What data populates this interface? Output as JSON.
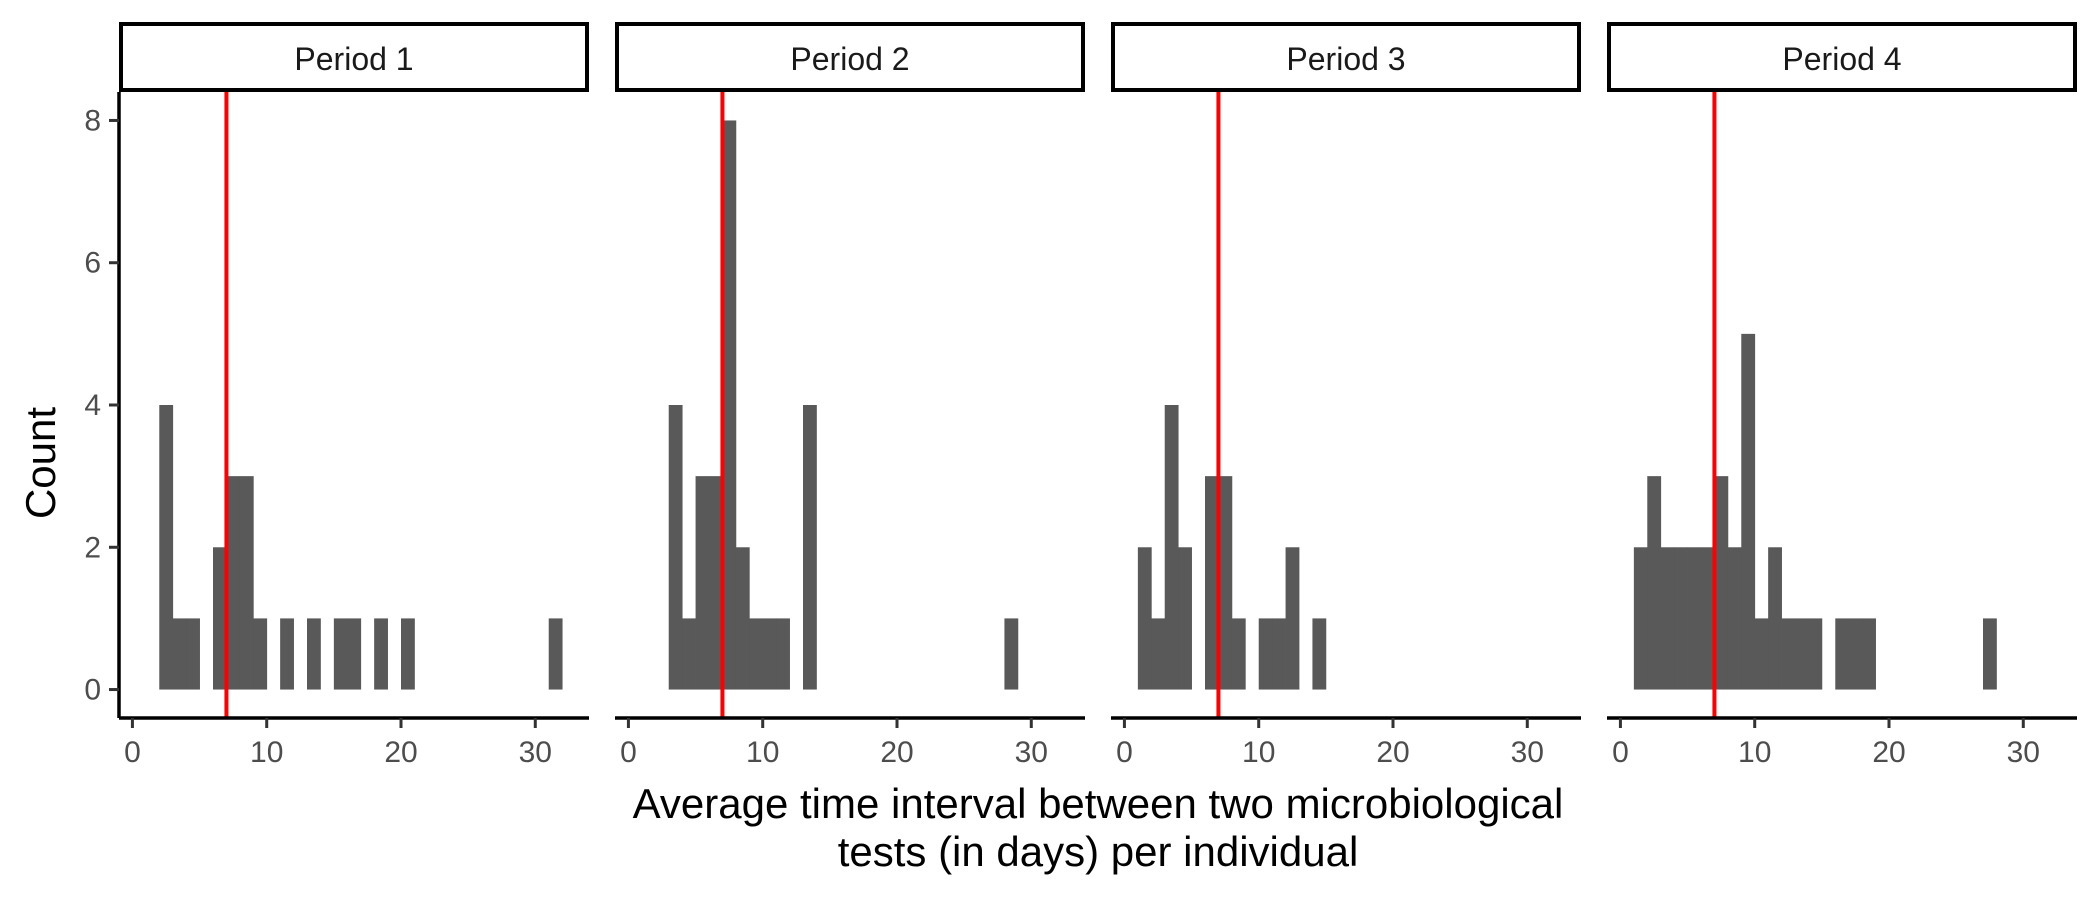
{
  "chart_data": {
    "type": "bar",
    "subtype": "faceted-histogram",
    "xlabel_lines": [
      "Average time interval between two microbiological",
      "tests (in days) per individual"
    ],
    "ylabel": "Count",
    "xlim": [
      -1,
      34
    ],
    "ylim": [
      -0.4,
      8.4
    ],
    "xticks": [
      0,
      10,
      20,
      30
    ],
    "yticks": [
      0,
      2,
      4,
      6,
      8
    ],
    "bin_width": 1,
    "grid": false,
    "colors": {
      "bar": "#595959",
      "reference_line": "#ff0000"
    },
    "reference_line": {
      "x": 7
    },
    "facets": [
      {
        "label": "Period 1",
        "bins": [
          {
            "start": 2,
            "count": 4
          },
          {
            "start": 3,
            "count": 1
          },
          {
            "start": 4,
            "count": 1
          },
          {
            "start": 6,
            "count": 2
          },
          {
            "start": 7,
            "count": 3
          },
          {
            "start": 8,
            "count": 3
          },
          {
            "start": 9,
            "count": 1
          },
          {
            "start": 11,
            "count": 1
          },
          {
            "start": 13,
            "count": 1
          },
          {
            "start": 15,
            "count": 1
          },
          {
            "start": 16,
            "count": 1
          },
          {
            "start": 18,
            "count": 1
          },
          {
            "start": 20,
            "count": 1
          },
          {
            "start": 31,
            "count": 1
          }
        ]
      },
      {
        "label": "Period 2",
        "bins": [
          {
            "start": 3,
            "count": 4
          },
          {
            "start": 4,
            "count": 1
          },
          {
            "start": 5,
            "count": 3
          },
          {
            "start": 6,
            "count": 3
          },
          {
            "start": 7,
            "count": 8
          },
          {
            "start": 8,
            "count": 2
          },
          {
            "start": 9,
            "count": 1
          },
          {
            "start": 10,
            "count": 1
          },
          {
            "start": 11,
            "count": 1
          },
          {
            "start": 13,
            "count": 4
          },
          {
            "start": 28,
            "count": 1
          }
        ]
      },
      {
        "label": "Period 3",
        "bins": [
          {
            "start": 1,
            "count": 2
          },
          {
            "start": 2,
            "count": 1
          },
          {
            "start": 3,
            "count": 4
          },
          {
            "start": 4,
            "count": 2
          },
          {
            "start": 6,
            "count": 3
          },
          {
            "start": 7,
            "count": 3
          },
          {
            "start": 8,
            "count": 1
          },
          {
            "start": 10,
            "count": 1
          },
          {
            "start": 11,
            "count": 1
          },
          {
            "start": 12,
            "count": 2
          },
          {
            "start": 14,
            "count": 1
          }
        ]
      },
      {
        "label": "Period 4",
        "bins": [
          {
            "start": 1,
            "count": 2
          },
          {
            "start": 2,
            "count": 3
          },
          {
            "start": 3,
            "count": 2
          },
          {
            "start": 4,
            "count": 2
          },
          {
            "start": 5,
            "count": 2
          },
          {
            "start": 6,
            "count": 2
          },
          {
            "start": 7,
            "count": 3
          },
          {
            "start": 8,
            "count": 2
          },
          {
            "start": 9,
            "count": 5
          },
          {
            "start": 10,
            "count": 1
          },
          {
            "start": 11,
            "count": 2
          },
          {
            "start": 12,
            "count": 1
          },
          {
            "start": 13,
            "count": 1
          },
          {
            "start": 14,
            "count": 1
          },
          {
            "start": 16,
            "count": 1
          },
          {
            "start": 17,
            "count": 1
          },
          {
            "start": 18,
            "count": 1
          },
          {
            "start": 27,
            "count": 1
          }
        ]
      }
    ]
  }
}
